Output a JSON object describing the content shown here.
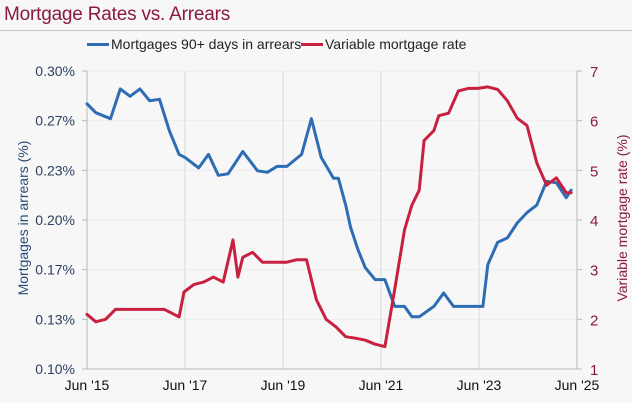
{
  "title": "Mortgage Rates vs. Arrears",
  "legend": [
    {
      "label": "Mortgages 90+ days in arrears",
      "color": "#2e6db4"
    },
    {
      "label": "Variable mortgage rate",
      "color": "#c8213f"
    }
  ],
  "axes": {
    "left_title": "Mortgages in arrears (%)",
    "right_title": "Variable mortgage rate (%)",
    "left_ticks": [
      "0.30%",
      "0.27%",
      "0.23%",
      "0.20%",
      "0.17%",
      "0.13%",
      "0.10%"
    ],
    "right_ticks": [
      "7",
      "6",
      "5",
      "4",
      "3",
      "2",
      "1"
    ],
    "x_ticks": [
      "Jun '15",
      "Jun '17",
      "Jun '19",
      "Jun '21",
      "Jun '23",
      "Jun '25"
    ]
  },
  "chart_data": {
    "type": "line",
    "title": "Mortgage Rates vs. Arrears",
    "xlabel": "",
    "ylabel": "Mortgages in arrears (%)",
    "y2label": "Variable mortgage rate (%)",
    "ylim": [
      0.1,
      0.3
    ],
    "y2lim": [
      1,
      7
    ],
    "x_range": [
      "Jun 2015",
      "Jun 2025"
    ],
    "x_tick_labels": [
      "Jun '15",
      "Jun '17",
      "Jun '19",
      "Jun '21",
      "Jun '23",
      "Jun '25"
    ],
    "grid": true,
    "legend_position": "top",
    "series": [
      {
        "name": "Mortgages 90+ days in arrears",
        "axis": "left",
        "color": "#2e6db4",
        "x": [
          2015.42,
          2015.6,
          2015.9,
          2016.1,
          2016.3,
          2016.5,
          2016.7,
          2016.9,
          2017.1,
          2017.3,
          2017.42,
          2017.7,
          2017.9,
          2018.1,
          2018.3,
          2018.6,
          2018.9,
          2019.1,
          2019.3,
          2019.5,
          2019.8,
          2020.0,
          2020.2,
          2020.45,
          2020.55,
          2020.7,
          2020.8,
          2020.95,
          2021.1,
          2021.3,
          2021.5,
          2021.7,
          2021.9,
          2022.05,
          2022.2,
          2022.5,
          2022.7,
          2022.9,
          2023.0,
          2023.2,
          2023.5,
          2023.6,
          2023.8,
          2024.0,
          2024.2,
          2024.4,
          2024.6,
          2024.8,
          2025.0,
          2025.2,
          2025.3
        ],
        "values": [
          0.278,
          0.272,
          0.268,
          0.288,
          0.283,
          0.288,
          0.28,
          0.281,
          0.26,
          0.244,
          0.242,
          0.235,
          0.244,
          0.23,
          0.231,
          0.246,
          0.233,
          0.232,
          0.236,
          0.236,
          0.244,
          0.268,
          0.242,
          0.228,
          0.228,
          0.21,
          0.195,
          0.18,
          0.168,
          0.16,
          0.16,
          0.142,
          0.142,
          0.135,
          0.135,
          0.142,
          0.151,
          0.142,
          0.142,
          0.142,
          0.142,
          0.17,
          0.185,
          0.188,
          0.198,
          0.205,
          0.21,
          0.226,
          0.225,
          0.215,
          0.22
        ]
      },
      {
        "name": "Variable mortgage rate",
        "axis": "right",
        "color": "#c8213f",
        "x": [
          2015.42,
          2015.6,
          2015.8,
          2016.0,
          2016.3,
          2016.5,
          2016.7,
          2017.0,
          2017.3,
          2017.4,
          2017.6,
          2017.8,
          2018.0,
          2018.2,
          2018.4,
          2018.5,
          2018.6,
          2018.8,
          2019.0,
          2019.2,
          2019.5,
          2019.7,
          2019.9,
          2020.1,
          2020.3,
          2020.5,
          2020.7,
          2020.9,
          2021.1,
          2021.3,
          2021.5,
          2021.7,
          2021.9,
          2022.05,
          2022.2,
          2022.3,
          2022.5,
          2022.6,
          2022.8,
          2023.0,
          2023.2,
          2023.4,
          2023.6,
          2023.8,
          2024.0,
          2024.2,
          2024.4,
          2024.6,
          2024.8,
          2025.0,
          2025.2,
          2025.3
        ],
        "values": [
          2.1,
          1.95,
          2.0,
          2.2,
          2.2,
          2.2,
          2.2,
          2.2,
          2.05,
          2.55,
          2.7,
          2.75,
          2.85,
          2.75,
          3.6,
          2.85,
          3.25,
          3.35,
          3.15,
          3.15,
          3.15,
          3.2,
          3.2,
          2.4,
          2.0,
          1.85,
          1.65,
          1.62,
          1.58,
          1.5,
          1.45,
          2.6,
          3.8,
          4.3,
          4.6,
          5.6,
          5.8,
          6.1,
          6.15,
          6.6,
          6.65,
          6.65,
          6.68,
          6.63,
          6.4,
          6.05,
          5.9,
          5.15,
          4.7,
          4.85,
          4.55,
          4.55
        ]
      }
    ]
  }
}
